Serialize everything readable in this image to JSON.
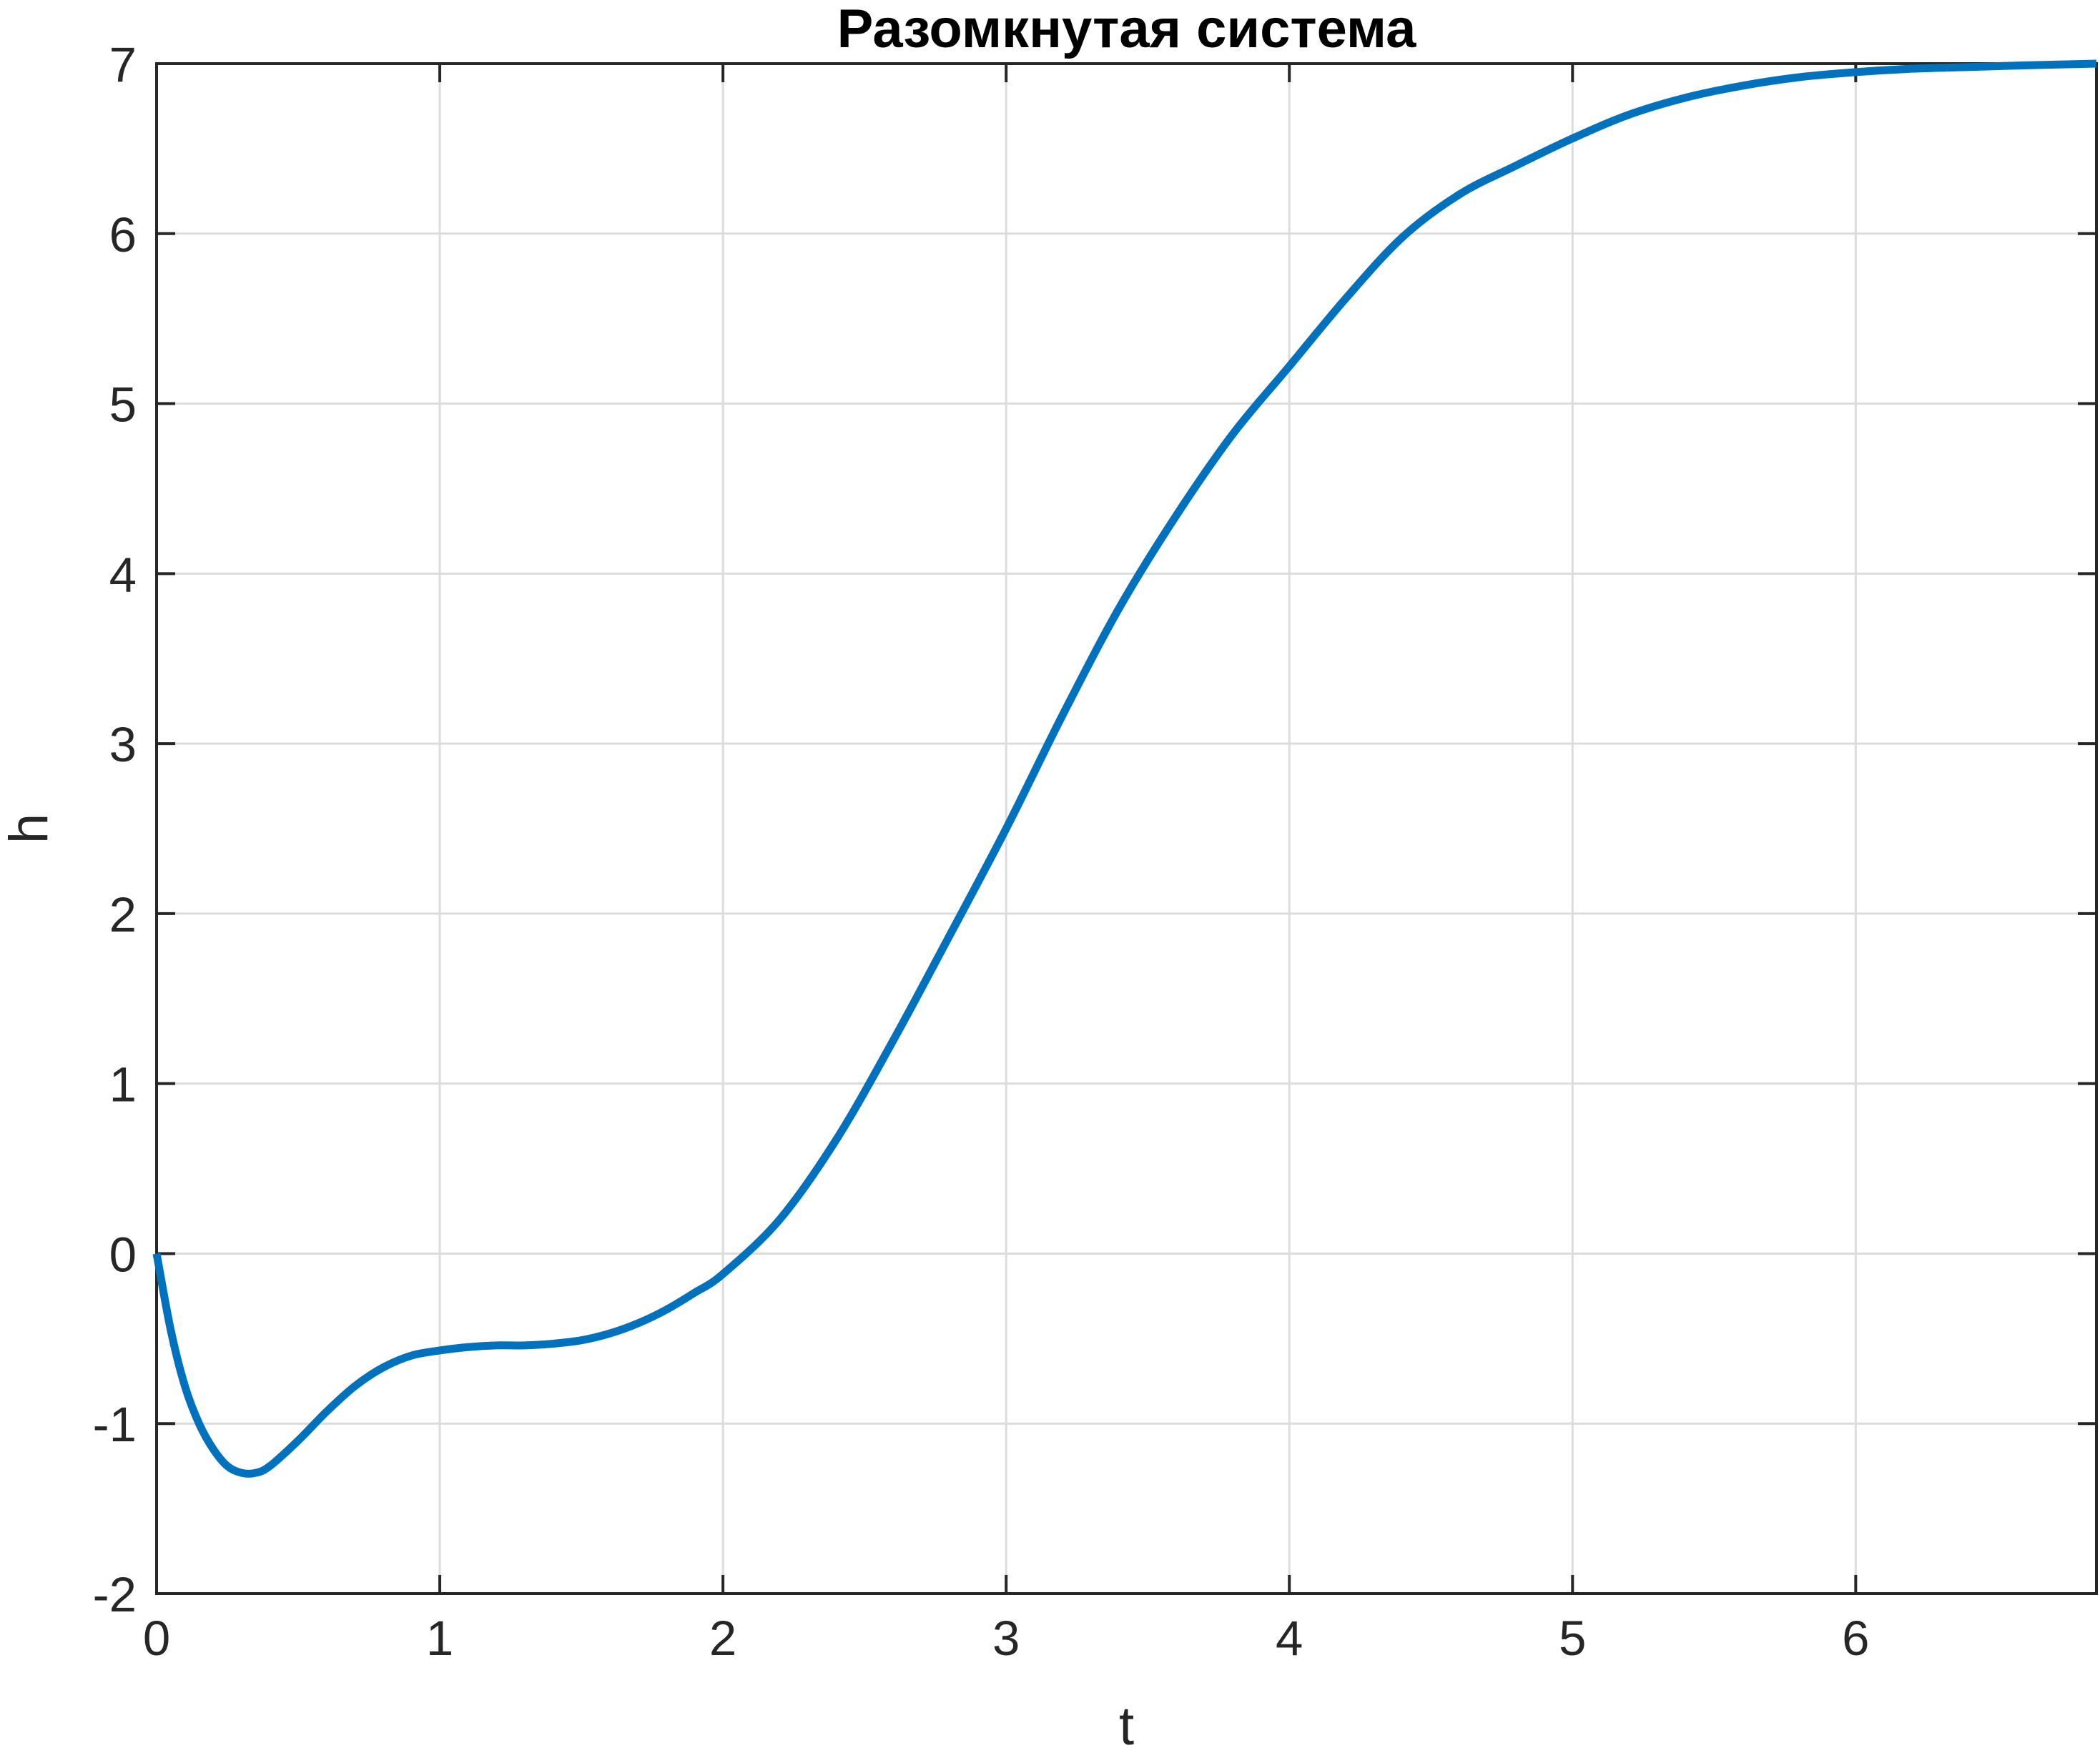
{
  "chart_data": {
    "type": "line",
    "title": "Разомкнутая система",
    "xlabel": "t",
    "ylabel": "h",
    "xlim": [
      0,
      6.85
    ],
    "ylim": [
      -2,
      7
    ],
    "x_ticks": [
      0,
      1,
      2,
      3,
      4,
      5,
      6
    ],
    "x_tick_labels": [
      "0",
      "1",
      "2",
      "3",
      "4",
      "5",
      "6"
    ],
    "y_ticks": [
      -2,
      -1,
      0,
      1,
      2,
      3,
      4,
      5,
      6,
      7
    ],
    "y_tick_labels": [
      "-2",
      "-1",
      "0",
      "1",
      "2",
      "3",
      "4",
      "5",
      "6",
      "7"
    ],
    "grid": true,
    "legend": false,
    "series": [
      {
        "color": "#0072bd",
        "x": [
          0,
          0.05,
          0.1,
          0.15,
          0.2,
          0.25,
          0.3,
          0.35,
          0.4,
          0.5,
          0.6,
          0.7,
          0.8,
          0.9,
          1.0,
          1.1,
          1.2,
          1.3,
          1.4,
          1.5,
          1.6,
          1.7,
          1.8,
          1.9,
          2.0,
          2.2,
          2.4,
          2.6,
          2.8,
          3.0,
          3.2,
          3.4,
          3.6,
          3.8,
          4.0,
          4.2,
          4.4,
          4.6,
          4.8,
          5.0,
          5.2,
          5.4,
          5.6,
          5.8,
          6.0,
          6.2,
          6.4,
          6.6,
          6.85
        ],
        "y": [
          0,
          -0.45,
          -0.78,
          -1.0,
          -1.15,
          -1.25,
          -1.29,
          -1.29,
          -1.25,
          -1.1,
          -0.93,
          -0.78,
          -0.67,
          -0.6,
          -0.57,
          -0.55,
          -0.54,
          -0.54,
          -0.53,
          -0.51,
          -0.47,
          -0.41,
          -0.33,
          -0.23,
          -0.12,
          0.2,
          0.67,
          1.25,
          1.87,
          2.5,
          3.17,
          3.8,
          4.34,
          4.82,
          5.22,
          5.62,
          5.98,
          6.23,
          6.4,
          6.56,
          6.7,
          6.8,
          6.87,
          6.92,
          6.95,
          6.97,
          6.98,
          6.99,
          7.0
        ]
      }
    ]
  }
}
